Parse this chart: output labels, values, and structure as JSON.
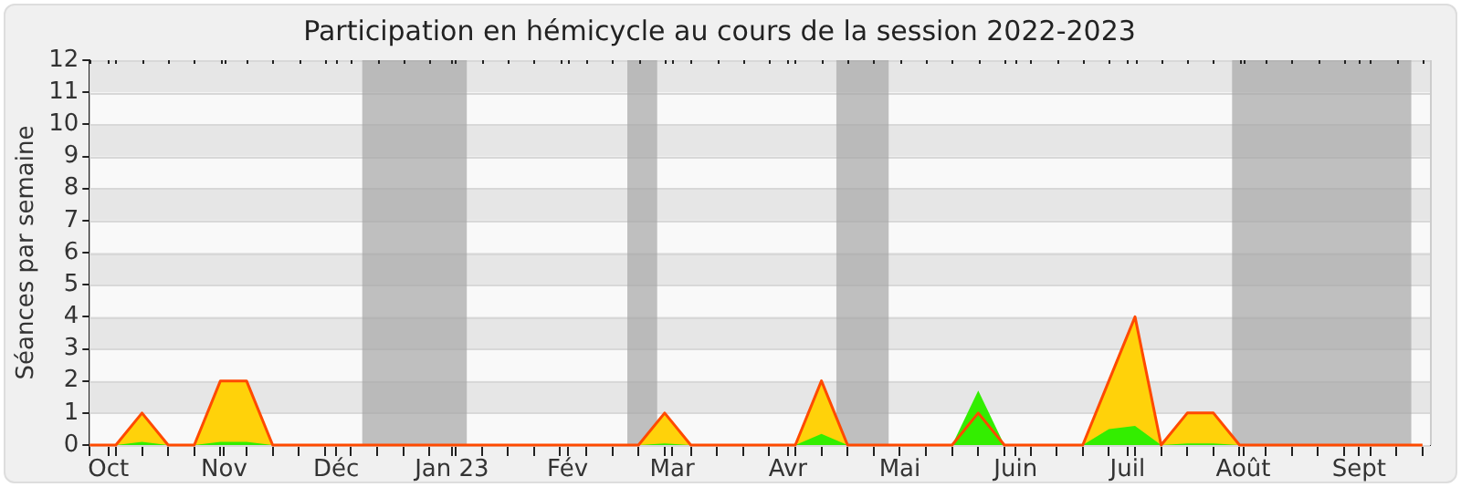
{
  "chart_data": {
    "type": "area",
    "title": "Participation en hémicycle au cours de la session 2022-2023",
    "ylabel": "Séances par semaine",
    "x": [
      "2022-09-26",
      "2022-10-03",
      "2022-10-10",
      "2022-10-17",
      "2022-10-24",
      "2022-10-31",
      "2022-11-07",
      "2022-11-14",
      "2022-11-21",
      "2022-11-28",
      "2022-12-05",
      "2022-12-12",
      "2022-12-19",
      "2022-12-26",
      "2023-01-02",
      "2023-01-09",
      "2023-01-16",
      "2023-01-23",
      "2023-01-30",
      "2023-02-06",
      "2023-02-13",
      "2023-02-20",
      "2023-02-27",
      "2023-03-06",
      "2023-03-13",
      "2023-03-20",
      "2023-03-27",
      "2023-04-03",
      "2023-04-10",
      "2023-04-17",
      "2023-04-24",
      "2023-05-01",
      "2023-05-08",
      "2023-05-15",
      "2023-05-22",
      "2023-05-29",
      "2023-06-05",
      "2023-06-12",
      "2023-06-19",
      "2023-06-26",
      "2023-07-03",
      "2023-07-10",
      "2023-07-17",
      "2023-07-24",
      "2023-07-31",
      "2023-08-07",
      "2023-08-14",
      "2023-08-21",
      "2023-08-28",
      "2023-09-04",
      "2023-09-11",
      "2023-09-18"
    ],
    "series": [
      {
        "color": "#ffd20a",
        "values": [
          0,
          0,
          1,
          0,
          0,
          2,
          2,
          0,
          0,
          0,
          0,
          0,
          0,
          0,
          0,
          0,
          0,
          0,
          0,
          0,
          0,
          0,
          1,
          0,
          0,
          0,
          0,
          0,
          2,
          0,
          0,
          0,
          0,
          0,
          1,
          0,
          0,
          0,
          0,
          2,
          4,
          0,
          1,
          1,
          0,
          0,
          0,
          0,
          0,
          0,
          0,
          0
        ]
      },
      {
        "color": "#33ee00",
        "values": [
          0,
          0,
          0.1,
          0,
          0,
          0.1,
          0.1,
          0,
          0,
          0,
          0,
          0,
          0,
          0,
          0,
          0,
          0,
          0,
          0,
          0,
          0,
          0,
          0.05,
          0,
          0,
          0,
          0,
          0,
          0.35,
          0,
          0,
          0,
          0,
          0,
          1.7,
          0,
          0,
          0,
          0,
          0.5,
          0.6,
          0,
          0.05,
          0.05,
          0,
          0,
          0,
          0,
          0,
          0,
          0,
          0
        ]
      }
    ],
    "xlim": [
      "2022-09-26",
      "2023-09-20"
    ],
    "xticks": [
      {
        "value": "2022-09-26",
        "label": null
      },
      {
        "value": "2022-10-01",
        "label": "Oct"
      },
      {
        "value": "2022-10-03",
        "label": null
      },
      {
        "value": "2022-10-10",
        "label": null
      },
      {
        "value": "2022-10-17",
        "label": null
      },
      {
        "value": "2022-10-24",
        "label": null
      },
      {
        "value": "2022-10-31",
        "label": null
      },
      {
        "value": "2022-11-01",
        "label": "Nov"
      },
      {
        "value": "2022-11-07",
        "label": null
      },
      {
        "value": "2022-11-14",
        "label": null
      },
      {
        "value": "2022-11-21",
        "label": null
      },
      {
        "value": "2022-11-28",
        "label": null
      },
      {
        "value": "2022-12-01",
        "label": "Déc"
      },
      {
        "value": "2022-12-05",
        "label": null
      },
      {
        "value": "2022-12-12",
        "label": null
      },
      {
        "value": "2022-12-19",
        "label": null
      },
      {
        "value": "2022-12-26",
        "label": null
      },
      {
        "value": "2023-01-01",
        "label": "Jan 23"
      },
      {
        "value": "2023-01-02",
        "label": null
      },
      {
        "value": "2023-01-09",
        "label": null
      },
      {
        "value": "2023-01-16",
        "label": null
      },
      {
        "value": "2023-01-23",
        "label": null
      },
      {
        "value": "2023-01-30",
        "label": null
      },
      {
        "value": "2023-02-01",
        "label": "Fév"
      },
      {
        "value": "2023-02-06",
        "label": null
      },
      {
        "value": "2023-02-13",
        "label": null
      },
      {
        "value": "2023-02-20",
        "label": null
      },
      {
        "value": "2023-02-27",
        "label": null
      },
      {
        "value": "2023-03-01",
        "label": "Mar"
      },
      {
        "value": "2023-03-06",
        "label": null
      },
      {
        "value": "2023-03-13",
        "label": null
      },
      {
        "value": "2023-03-20",
        "label": null
      },
      {
        "value": "2023-03-27",
        "label": null
      },
      {
        "value": "2023-04-01",
        "label": "Avr"
      },
      {
        "value": "2023-04-03",
        "label": null
      },
      {
        "value": "2023-04-10",
        "label": null
      },
      {
        "value": "2023-04-17",
        "label": null
      },
      {
        "value": "2023-04-24",
        "label": null
      },
      {
        "value": "2023-05-01",
        "label": "Mai"
      },
      {
        "value": "2023-05-08",
        "label": null
      },
      {
        "value": "2023-05-15",
        "label": null
      },
      {
        "value": "2023-05-22",
        "label": null
      },
      {
        "value": "2023-05-29",
        "label": null
      },
      {
        "value": "2023-06-01",
        "label": "Juin"
      },
      {
        "value": "2023-06-05",
        "label": null
      },
      {
        "value": "2023-06-12",
        "label": null
      },
      {
        "value": "2023-06-19",
        "label": null
      },
      {
        "value": "2023-06-26",
        "label": null
      },
      {
        "value": "2023-07-01",
        "label": "Juil"
      },
      {
        "value": "2023-07-03",
        "label": null
      },
      {
        "value": "2023-07-10",
        "label": null
      },
      {
        "value": "2023-07-17",
        "label": null
      },
      {
        "value": "2023-07-24",
        "label": null
      },
      {
        "value": "2023-07-31",
        "label": null
      },
      {
        "value": "2023-08-01",
        "label": "Août"
      },
      {
        "value": "2023-08-07",
        "label": null
      },
      {
        "value": "2023-08-14",
        "label": null
      },
      {
        "value": "2023-08-21",
        "label": null
      },
      {
        "value": "2023-08-28",
        "label": null
      },
      {
        "value": "2023-09-01",
        "label": "Sept"
      },
      {
        "value": "2023-09-04",
        "label": null
      },
      {
        "value": "2023-09-11",
        "label": null
      },
      {
        "value": "2023-09-18",
        "label": null
      }
    ],
    "ylim": [
      0,
      12
    ],
    "yticks": [
      0,
      1,
      2,
      3,
      4,
      5,
      6,
      7,
      8,
      9,
      10,
      11,
      12
    ],
    "bands": [
      {
        "axis": "x",
        "from": "2022-12-08",
        "to": "2023-01-05",
        "color": "#a6a6a6"
      },
      {
        "axis": "x",
        "from": "2023-02-17",
        "to": "2023-02-25",
        "color": "#a6a6a6"
      },
      {
        "axis": "x",
        "from": "2023-04-14",
        "to": "2023-04-28",
        "color": "#a6a6a6"
      },
      {
        "axis": "x",
        "from": "2023-07-29",
        "to": "2023-09-15",
        "color": "#a6a6a6"
      }
    ],
    "grid": true,
    "legend": false,
    "marker": "none"
  }
}
